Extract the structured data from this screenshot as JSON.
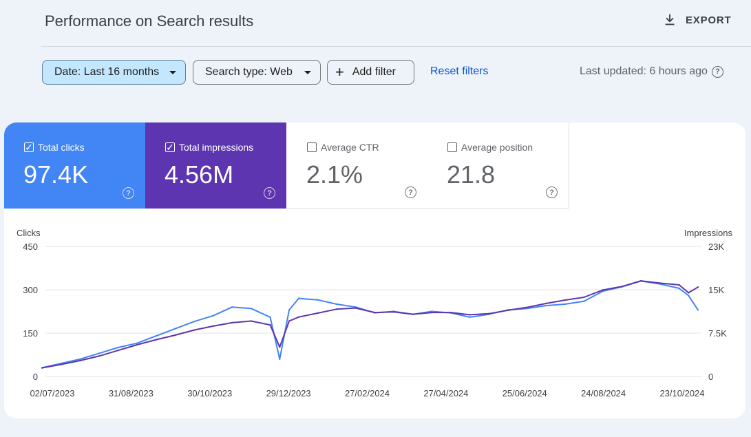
{
  "header": {
    "title": "Performance on Search results",
    "export_label": "EXPORT"
  },
  "filters": {
    "date_label": "Date: Last 16 months",
    "search_type_label": "Search type: Web",
    "add_filter_label": "Add filter",
    "reset_label": "Reset filters",
    "last_updated": "Last updated: 6 hours ago"
  },
  "metrics": [
    {
      "label": "Total clicks",
      "value": "97.4K",
      "checked": true
    },
    {
      "label": "Total impressions",
      "value": "4.56M",
      "checked": true
    },
    {
      "label": "Average CTR",
      "value": "2.1%",
      "checked": false
    },
    {
      "label": "Average position",
      "value": "21.8",
      "checked": false
    }
  ],
  "colors": {
    "clicks": "#4285f4",
    "impressions": "#5e35b1",
    "accent_link": "#0b57d0",
    "chip_selected": "#c2e7ff"
  },
  "icons": {
    "export": "download-icon",
    "help": "help-circle-icon",
    "checkbox": "checkbox-icon",
    "dropdown": "caret-down-icon",
    "add": "plus-icon"
  },
  "chart_data": {
    "type": "line",
    "ylabel_left": "Clicks",
    "ylabel_right": "Impressions",
    "ylim_left": [
      0,
      450
    ],
    "ylim_right": [
      0,
      23000
    ],
    "yticks_left": [
      "0",
      "150",
      "300",
      "450"
    ],
    "yticks_right": [
      "0",
      "7.5K",
      "15K",
      "23K"
    ],
    "xticks": [
      "02/07/2023",
      "31/08/2023",
      "30/10/2023",
      "29/12/2023",
      "27/02/2024",
      "27/04/2024",
      "25/06/2024",
      "24/08/2024",
      "23/10/2024"
    ],
    "grid": true,
    "series": [
      {
        "name": "Clicks",
        "axis": "left",
        "color": "#4285f4",
        "x": [
          "2023-07-02",
          "2023-07-16",
          "2023-07-30",
          "2023-08-13",
          "2023-08-27",
          "2023-09-10",
          "2023-09-24",
          "2023-10-08",
          "2023-10-22",
          "2023-11-05",
          "2023-11-19",
          "2023-12-03",
          "2023-12-17",
          "2023-12-24",
          "2023-12-31",
          "2024-01-07",
          "2024-01-21",
          "2024-02-04",
          "2024-02-18",
          "2024-03-03",
          "2024-03-17",
          "2024-03-31",
          "2024-04-14",
          "2024-04-28",
          "2024-05-12",
          "2024-05-26",
          "2024-06-09",
          "2024-06-23",
          "2024-07-07",
          "2024-07-21",
          "2024-08-04",
          "2024-08-18",
          "2024-09-01",
          "2024-09-15",
          "2024-09-29",
          "2024-10-13",
          "2024-10-20",
          "2024-10-27"
        ],
        "values": [
          30,
          45,
          60,
          80,
          100,
          115,
          140,
          165,
          190,
          210,
          240,
          235,
          205,
          60,
          230,
          270,
          265,
          250,
          240,
          220,
          225,
          215,
          225,
          220,
          205,
          215,
          230,
          235,
          245,
          250,
          260,
          295,
          310,
          330,
          320,
          305,
          280,
          230
        ]
      },
      {
        "name": "Impressions",
        "axis": "right",
        "color": "#5e35b1",
        "x": [
          "2023-07-02",
          "2023-07-16",
          "2023-07-30",
          "2023-08-13",
          "2023-08-27",
          "2023-09-10",
          "2023-09-24",
          "2023-10-08",
          "2023-10-22",
          "2023-11-05",
          "2023-11-19",
          "2023-12-03",
          "2023-12-17",
          "2023-12-24",
          "2023-12-31",
          "2024-01-07",
          "2024-01-21",
          "2024-02-04",
          "2024-02-18",
          "2024-03-03",
          "2024-03-17",
          "2024-03-31",
          "2024-04-14",
          "2024-04-28",
          "2024-05-12",
          "2024-05-26",
          "2024-06-09",
          "2024-06-23",
          "2024-07-07",
          "2024-07-21",
          "2024-08-04",
          "2024-08-18",
          "2024-09-01",
          "2024-09-15",
          "2024-09-29",
          "2024-10-13",
          "2024-10-20",
          "2024-10-27"
        ],
        "values": [
          1500,
          2100,
          2800,
          3600,
          4600,
          5600,
          6500,
          7300,
          8200,
          8900,
          9500,
          9800,
          9100,
          5200,
          9800,
          10500,
          11200,
          11900,
          12100,
          11300,
          11400,
          11000,
          11300,
          11300,
          10900,
          11100,
          11700,
          12200,
          12900,
          13500,
          14000,
          15300,
          15900,
          16900,
          16500,
          16200,
          14800,
          15800
        ]
      }
    ]
  }
}
